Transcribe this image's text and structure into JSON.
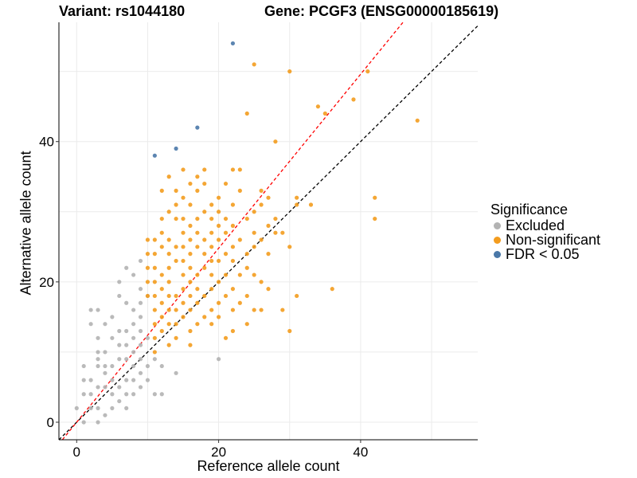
{
  "title_left": "Variant: rs1044180",
  "title_right": "Gene: PCGF3 (ENSG00000185619)",
  "legend": {
    "title": "Significance",
    "items": [
      {
        "label": "Excluded",
        "color": "#b3b3b3"
      },
      {
        "label": "Non-significant",
        "color": "#f39c1e"
      },
      {
        "label": "FDR < 0.05",
        "color": "#4a78a8"
      }
    ]
  },
  "chart_data": {
    "type": "scatter",
    "xlabel": "Reference allele count",
    "ylabel": "Alternative allele count",
    "xlim": [
      -2.5,
      56.5
    ],
    "ylim": [
      -2.5,
      57
    ],
    "xticks": [
      0,
      20,
      40
    ],
    "yticks": [
      0,
      20,
      40
    ],
    "grid": true,
    "legend_position": "right",
    "reference_lines": [
      {
        "name": "identity",
        "slope": 1,
        "intercept": 0,
        "color": "#000000",
        "style": "dashed"
      },
      {
        "name": "fit",
        "slope": 1.24,
        "intercept": 0,
        "color": "#ff0000",
        "style": "dashed"
      }
    ],
    "series": [
      {
        "name": "Excluded",
        "color": "#b3b3b3",
        "points": [
          [
            0,
            2
          ],
          [
            1,
            0
          ],
          [
            1,
            4
          ],
          [
            1,
            6
          ],
          [
            1,
            8
          ],
          [
            2,
            2
          ],
          [
            2,
            4
          ],
          [
            2,
            6
          ],
          [
            2,
            14
          ],
          [
            2,
            16
          ],
          [
            3,
            0
          ],
          [
            3,
            2
          ],
          [
            3,
            5
          ],
          [
            3,
            8
          ],
          [
            3,
            9
          ],
          [
            3,
            10
          ],
          [
            3,
            12
          ],
          [
            3,
            16
          ],
          [
            4,
            1
          ],
          [
            4,
            5
          ],
          [
            4,
            7
          ],
          [
            4,
            8
          ],
          [
            4,
            10
          ],
          [
            4,
            14
          ],
          [
            5,
            2
          ],
          [
            5,
            4
          ],
          [
            5,
            6
          ],
          [
            5,
            8
          ],
          [
            5,
            12
          ],
          [
            5,
            15
          ],
          [
            6,
            3
          ],
          [
            6,
            5
          ],
          [
            6,
            9
          ],
          [
            6,
            11
          ],
          [
            6,
            13
          ],
          [
            6,
            18
          ],
          [
            6,
            20
          ],
          [
            7,
            2
          ],
          [
            7,
            4
          ],
          [
            7,
            6
          ],
          [
            7,
            9
          ],
          [
            7,
            11
          ],
          [
            7,
            13
          ],
          [
            7,
            17
          ],
          [
            7,
            22
          ],
          [
            8,
            4
          ],
          [
            8,
            6
          ],
          [
            8,
            8
          ],
          [
            8,
            10
          ],
          [
            8,
            12
          ],
          [
            8,
            14
          ],
          [
            8,
            16
          ],
          [
            8,
            21
          ],
          [
            9,
            5
          ],
          [
            9,
            7
          ],
          [
            9,
            9
          ],
          [
            9,
            11
          ],
          [
            9,
            13
          ],
          [
            9,
            15
          ],
          [
            9,
            17
          ],
          [
            9,
            19
          ],
          [
            9,
            23
          ],
          [
            10,
            6
          ],
          [
            10,
            8
          ],
          [
            10,
            12
          ],
          [
            10,
            18
          ],
          [
            11,
            4
          ],
          [
            11,
            9
          ],
          [
            12,
            4
          ],
          [
            12,
            8
          ],
          [
            14,
            7
          ],
          [
            20,
            9
          ]
        ]
      },
      {
        "name": "Non-significant",
        "color": "#f39c1e",
        "points": [
          [
            10,
            18
          ],
          [
            10,
            20
          ],
          [
            10,
            22
          ],
          [
            10,
            24
          ],
          [
            10,
            26
          ],
          [
            11,
            10
          ],
          [
            11,
            12
          ],
          [
            11,
            14
          ],
          [
            11,
            16
          ],
          [
            11,
            18
          ],
          [
            11,
            20
          ],
          [
            11,
            22
          ],
          [
            11,
            24
          ],
          [
            11,
            26
          ],
          [
            12,
            13
          ],
          [
            12,
            15
          ],
          [
            12,
            17
          ],
          [
            12,
            19
          ],
          [
            12,
            21
          ],
          [
            12,
            25
          ],
          [
            12,
            27
          ],
          [
            12,
            29
          ],
          [
            12,
            33
          ],
          [
            13,
            11
          ],
          [
            13,
            14
          ],
          [
            13,
            16
          ],
          [
            13,
            18
          ],
          [
            13,
            20
          ],
          [
            13,
            22
          ],
          [
            13,
            24
          ],
          [
            13,
            26
          ],
          [
            13,
            30
          ],
          [
            13,
            35
          ],
          [
            14,
            12
          ],
          [
            14,
            14
          ],
          [
            14,
            16
          ],
          [
            14,
            18
          ],
          [
            14,
            23
          ],
          [
            14,
            25
          ],
          [
            14,
            29
          ],
          [
            14,
            31
          ],
          [
            14,
            33
          ],
          [
            15,
            15
          ],
          [
            15,
            17
          ],
          [
            15,
            19
          ],
          [
            15,
            21
          ],
          [
            15,
            23
          ],
          [
            15,
            25
          ],
          [
            15,
            27
          ],
          [
            15,
            29
          ],
          [
            15,
            32
          ],
          [
            15,
            36
          ],
          [
            16,
            11
          ],
          [
            16,
            13
          ],
          [
            16,
            16
          ],
          [
            16,
            18
          ],
          [
            16,
            20
          ],
          [
            16,
            22
          ],
          [
            16,
            24
          ],
          [
            16,
            26
          ],
          [
            16,
            28
          ],
          [
            16,
            31
          ],
          [
            16,
            34
          ],
          [
            17,
            14
          ],
          [
            17,
            17
          ],
          [
            17,
            19
          ],
          [
            17,
            21
          ],
          [
            17,
            25
          ],
          [
            17,
            27
          ],
          [
            17,
            29
          ],
          [
            17,
            33
          ],
          [
            17,
            35
          ],
          [
            18,
            15
          ],
          [
            18,
            18
          ],
          [
            18,
            22
          ],
          [
            18,
            24
          ],
          [
            18,
            26
          ],
          [
            18,
            30
          ],
          [
            18,
            34
          ],
          [
            18,
            36
          ],
          [
            19,
            14
          ],
          [
            19,
            16
          ],
          [
            19,
            19
          ],
          [
            19,
            21
          ],
          [
            19,
            23
          ],
          [
            19,
            25
          ],
          [
            19,
            27
          ],
          [
            19,
            29
          ],
          [
            19,
            31
          ],
          [
            20,
            15
          ],
          [
            20,
            17
          ],
          [
            20,
            20
          ],
          [
            20,
            23
          ],
          [
            20,
            26
          ],
          [
            20,
            28
          ],
          [
            20,
            30
          ],
          [
            20,
            32
          ],
          [
            21,
            12
          ],
          [
            21,
            18
          ],
          [
            21,
            21
          ],
          [
            21,
            24
          ],
          [
            21,
            27
          ],
          [
            21,
            29
          ],
          [
            21,
            34
          ],
          [
            22,
            13
          ],
          [
            22,
            16
          ],
          [
            22,
            19
          ],
          [
            22,
            23
          ],
          [
            22,
            25
          ],
          [
            22,
            28
          ],
          [
            22,
            31
          ],
          [
            22,
            36
          ],
          [
            23,
            17
          ],
          [
            23,
            21
          ],
          [
            23,
            26
          ],
          [
            23,
            33
          ],
          [
            23,
            36
          ],
          [
            24,
            14
          ],
          [
            24,
            18
          ],
          [
            24,
            22
          ],
          [
            24,
            24
          ],
          [
            24,
            29
          ],
          [
            24,
            44
          ],
          [
            25,
            16
          ],
          [
            25,
            21
          ],
          [
            25,
            25
          ],
          [
            25,
            27
          ],
          [
            25,
            30
          ],
          [
            25,
            51
          ],
          [
            26,
            16
          ],
          [
            26,
            20
          ],
          [
            26,
            26
          ],
          [
            26,
            31
          ],
          [
            26,
            33
          ],
          [
            27,
            19
          ],
          [
            27,
            24
          ],
          [
            27,
            28
          ],
          [
            27,
            32
          ],
          [
            28,
            27
          ],
          [
            28,
            29
          ],
          [
            28,
            40
          ],
          [
            29,
            16
          ],
          [
            29,
            27
          ],
          [
            30,
            13
          ],
          [
            30,
            25
          ],
          [
            30,
            50
          ],
          [
            31,
            18
          ],
          [
            31,
            31
          ],
          [
            31,
            32
          ],
          [
            33,
            31
          ],
          [
            34,
            45
          ],
          [
            35,
            44
          ],
          [
            36,
            19
          ],
          [
            39,
            46
          ],
          [
            41,
            50
          ],
          [
            42,
            29
          ],
          [
            42,
            32
          ],
          [
            48,
            43
          ]
        ]
      },
      {
        "name": "FDR < 0.05",
        "color": "#4a78a8",
        "points": [
          [
            11,
            38
          ],
          [
            14,
            39
          ],
          [
            17,
            42
          ],
          [
            22,
            54
          ]
        ]
      }
    ]
  }
}
